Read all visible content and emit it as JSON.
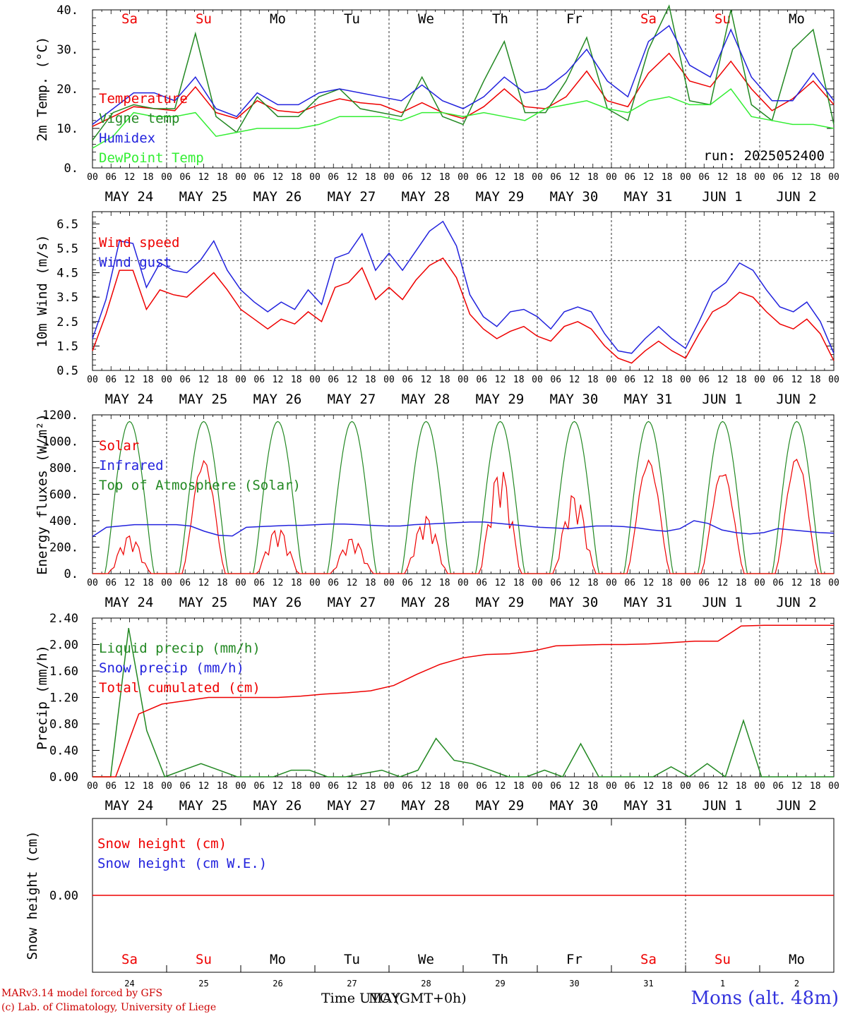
{
  "footer": {
    "model": "MARv3.14 model forced by GFS",
    "lab": "(c) Lab. of Climatology, University of Liege",
    "time_label": "Time UTC (GMT+0h)",
    "month_label": "MAY",
    "station": "Mons (alt. 48m)"
  },
  "colors": {
    "red": "#ee0000",
    "green": "#228822",
    "blue": "#2222dd",
    "lightgreen": "#33ee33",
    "dayweekend": "#ee0000"
  },
  "chart_data": [
    {
      "type": "line",
      "ylabel": "2m Temp. (°C)",
      "ylim": [
        0,
        40
      ],
      "yticks": [
        "0.",
        "10.",
        "20.",
        "30.",
        "40."
      ],
      "days_top": [
        "Sa",
        "Su",
        "Mo",
        "Tu",
        "We",
        "Th",
        "Fr",
        "Sa",
        "Su",
        "Mo"
      ],
      "date_labels": [
        "MAY 24",
        "MAY 25",
        "MAY 26",
        "MAY 27",
        "MAY 28",
        "MAY 29",
        "MAY 30",
        "MAY 31",
        "JUN  1",
        "JUN  2"
      ],
      "hour_labels": [
        "00",
        "06",
        "12",
        "18"
      ],
      "annotation": "run: 2025052400",
      "x_hours": [
        0,
        6,
        12,
        18,
        24,
        30,
        36,
        42,
        48,
        54,
        60,
        66,
        72,
        78,
        84,
        90,
        96,
        102,
        108,
        114,
        120,
        126,
        132,
        138,
        144,
        150,
        156,
        162,
        168,
        174,
        180,
        186,
        192,
        198,
        204,
        210,
        216,
        222,
        228,
        234,
        240
      ],
      "series": [
        {
          "name": "Temperature",
          "color": "red",
          "values": [
            10.5,
            13,
            15.5,
            15,
            14.5,
            20.5,
            14,
            12.5,
            17,
            14.5,
            14,
            16,
            17.5,
            16.5,
            16,
            14,
            16.5,
            14,
            12.5,
            15.5,
            20,
            15.5,
            15,
            18,
            24.5,
            17,
            15.5,
            24,
            29,
            22,
            20.5,
            27,
            20,
            14.5,
            17.5,
            22,
            16
          ]
        },
        {
          "name": "Vigne temp",
          "color": "green",
          "values": [
            7,
            14,
            16,
            15,
            15,
            34,
            13,
            9,
            18,
            13,
            13,
            18,
            20,
            15,
            14,
            13,
            23,
            13,
            11,
            22,
            32,
            14,
            14,
            22,
            33,
            15,
            12,
            30,
            41,
            17,
            16,
            40,
            16,
            12,
            30,
            35,
            11
          ]
        },
        {
          "name": "Humidex",
          "color": "blue",
          "values": [
            11,
            15,
            19,
            19,
            17,
            23,
            15,
            13,
            19,
            16,
            16,
            19,
            20,
            19,
            18,
            17,
            21,
            17,
            15,
            18,
            23,
            19,
            20,
            24,
            30,
            22,
            18,
            32,
            36,
            26,
            23,
            35,
            23,
            17,
            17,
            24,
            17
          ]
        },
        {
          "name": "DewPoint Temp",
          "color": "lightgreen",
          "values": [
            5,
            8,
            14,
            13,
            13,
            14,
            8,
            9,
            10,
            10,
            10,
            11,
            13,
            13,
            13,
            12,
            14,
            14,
            13,
            14,
            13,
            12,
            15,
            16,
            17,
            15,
            14,
            17,
            18,
            16,
            16,
            20,
            13,
            12,
            11,
            11,
            10
          ]
        }
      ]
    },
    {
      "type": "line",
      "ylabel": "10m Wind (m/s)",
      "ylim": [
        0.5,
        7.0
      ],
      "yticks": [
        "0.5",
        "1.5",
        "2.5",
        "3.5",
        "4.5",
        "5.5",
        "6.5"
      ],
      "ref_line": 5.0,
      "series": [
        {
          "name": "Wind speed",
          "color": "red",
          "values": [
            1.3,
            2.8,
            4.6,
            4.6,
            3.0,
            3.8,
            3.6,
            3.5,
            4.0,
            4.5,
            3.8,
            3.0,
            2.6,
            2.2,
            2.6,
            2.4,
            2.9,
            2.5,
            3.9,
            4.1,
            4.7,
            3.4,
            3.9,
            3.4,
            4.2,
            4.8,
            5.1,
            4.3,
            2.8,
            2.2,
            1.8,
            2.1,
            2.3,
            1.9,
            1.7,
            2.3,
            2.5,
            2.2,
            1.5,
            1.0,
            0.8,
            1.3,
            1.7,
            1.3,
            1.0,
            2.0,
            2.9,
            3.2,
            3.7,
            3.5,
            2.9,
            2.4,
            2.2,
            2.6,
            2.0,
            0.9
          ]
        },
        {
          "name": "Wind gust",
          "color": "blue",
          "values": [
            1.8,
            3.4,
            5.8,
            5.7,
            3.9,
            4.9,
            4.6,
            4.5,
            5.0,
            5.8,
            4.6,
            3.8,
            3.3,
            2.9,
            3.3,
            3.0,
            3.8,
            3.2,
            5.1,
            5.3,
            6.1,
            4.6,
            5.3,
            4.6,
            5.4,
            6.2,
            6.6,
            5.6,
            3.6,
            2.7,
            2.3,
            2.9,
            3.0,
            2.7,
            2.2,
            2.9,
            3.1,
            2.9,
            2.0,
            1.3,
            1.2,
            1.8,
            2.3,
            1.8,
            1.4,
            2.5,
            3.7,
            4.1,
            4.9,
            4.6,
            3.8,
            3.1,
            2.9,
            3.3,
            2.5,
            1.2
          ]
        }
      ]
    },
    {
      "type": "line",
      "ylabel": "Energy fluxes (W/m²)",
      "ylim": [
        0,
        1200
      ],
      "yticks": [
        "0.",
        "200.",
        "400.",
        "600.",
        "800.",
        "1000.",
        "1200."
      ],
      "series": [
        {
          "name": "Solar",
          "color": "red",
          "peaks": [
            300,
            860,
            360,
            280,
            450,
            830,
            630,
            860,
            780,
            880
          ]
        },
        {
          "name": "Infrared",
          "color": "blue",
          "values": [
            280,
            350,
            360,
            370,
            370,
            370,
            370,
            360,
            320,
            290,
            285,
            350,
            355,
            360,
            365,
            365,
            370,
            375,
            375,
            370,
            365,
            360,
            360,
            370,
            375,
            380,
            385,
            390,
            390,
            380,
            370,
            360,
            350,
            345,
            340,
            350,
            360,
            360,
            355,
            345,
            330,
            320,
            340,
            400,
            380,
            330,
            310,
            300,
            310,
            340,
            330,
            320,
            310,
            305
          ]
        },
        {
          "name": "Top of Atmosphere (Solar)",
          "color": "green",
          "peak": 1150
        }
      ]
    },
    {
      "type": "line",
      "ylabel": "Precip (mm/h)",
      "ylim": [
        0,
        2.4
      ],
      "yticks": [
        "0.00",
        "0.40",
        "0.80",
        "1.20",
        "1.60",
        "2.00",
        "2.40"
      ],
      "series": [
        {
          "name": "Liquid precip (mm/h)",
          "color": "green",
          "values": [
            0,
            0,
            2.25,
            0.7,
            0,
            0.1,
            0.2,
            0.1,
            0,
            0,
            0,
            0.1,
            0.1,
            0,
            0,
            0.05,
            0.1,
            0,
            0.1,
            0.58,
            0.25,
            0.2,
            0.1,
            0,
            0,
            0.1,
            0,
            0.5,
            0,
            0,
            0,
            0,
            0.15,
            0,
            0.2,
            0,
            0.85,
            0,
            0,
            0,
            0,
            0
          ]
        },
        {
          "name": "Snow precip (mm/h)",
          "color": "blue",
          "values": []
        },
        {
          "name": "Total cumulated (cm)",
          "color": "red",
          "values": [
            0,
            0,
            0.95,
            1.1,
            1.15,
            1.2,
            1.2,
            1.2,
            1.2,
            1.22,
            1.25,
            1.27,
            1.3,
            1.38,
            1.55,
            1.7,
            1.8,
            1.85,
            1.86,
            1.9,
            1.98,
            1.99,
            2.0,
            2.0,
            2.01,
            2.03,
            2.05,
            2.05,
            2.28,
            2.29,
            2.29,
            2.29,
            2.29
          ]
        }
      ]
    },
    {
      "type": "line",
      "ylabel": "Snow height (cm)",
      "ylim": [
        -1,
        1
      ],
      "yticks": [
        "0.00"
      ],
      "days_bottom": [
        "Sa",
        "Su",
        "Mo",
        "Tu",
        "We",
        "Th",
        "Fr",
        "Sa",
        "Su",
        "Mo"
      ],
      "day_numbers": [
        "24",
        "25",
        "26",
        "27",
        "28",
        "29",
        "30",
        "31",
        "1",
        "2"
      ],
      "series": [
        {
          "name": "Snow height (cm)",
          "color": "red",
          "values": [
            0,
            0
          ]
        },
        {
          "name": "Snow height (cm W.E.)",
          "color": "blue",
          "values": []
        }
      ]
    }
  ]
}
